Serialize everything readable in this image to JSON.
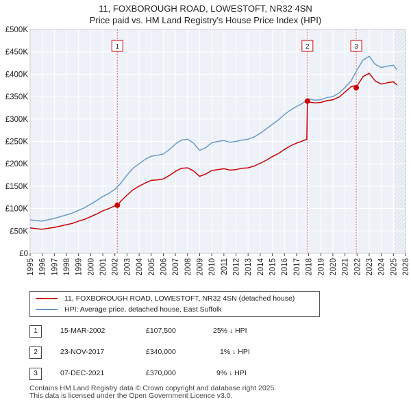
{
  "title_line1": "11, FOXBOROUGH ROAD, LOWESTOFT, NR32 4SN",
  "title_line2": "Price paid vs. HM Land Registry's House Price Index (HPI)",
  "legend": {
    "property": "11, FOXBOROUGH ROAD, LOWESTOFT, NR32 4SN (detached house)",
    "hpi": "HPI: Average price, detached house, East Suffolk"
  },
  "colors": {
    "property": "#cc0000",
    "hpi": "#6699cc",
    "shade": "#e8eef8"
  },
  "sales": [
    {
      "num": "1",
      "date": "15-MAR-2002",
      "price": "£107,500",
      "hpi": "25% ↓ HPI"
    },
    {
      "num": "2",
      "date": "23-NOV-2017",
      "price": "£340,000",
      "hpi": "1% ↓ HPI"
    },
    {
      "num": "3",
      "date": "07-DEC-2021",
      "price": "£370,000",
      "hpi": "9% ↓ HPI"
    }
  ],
  "footer_line1": "Contains HM Land Registry data © Crown copyright and database right 2025.",
  "footer_line2": "This data is licensed under the Open Government Licence v3.0.",
  "chart_data": {
    "type": "line",
    "xlim": [
      1995,
      2026
    ],
    "ylim": [
      0,
      500000
    ],
    "yticks": [
      {
        "value": 0,
        "label": "£0"
      },
      {
        "value": 50000,
        "label": "£50K"
      },
      {
        "value": 100000,
        "label": "£100K"
      },
      {
        "value": 150000,
        "label": "£150K"
      },
      {
        "value": 200000,
        "label": "£200K"
      },
      {
        "value": 250000,
        "label": "£250K"
      },
      {
        "value": 300000,
        "label": "£300K"
      },
      {
        "value": 350000,
        "label": "£350K"
      },
      {
        "value": 400000,
        "label": "£400K"
      },
      {
        "value": 450000,
        "label": "£450K"
      },
      {
        "value": 500000,
        "label": "£500K"
      }
    ],
    "xticks": [
      "1995",
      "1996",
      "1997",
      "1998",
      "1999",
      "2000",
      "2001",
      "2002",
      "2003",
      "2004",
      "2005",
      "2006",
      "2007",
      "2008",
      "2009",
      "2010",
      "2011",
      "2012",
      "2013",
      "2014",
      "2015",
      "2016",
      "2017",
      "2018",
      "2019",
      "2020",
      "2021",
      "2022",
      "2023",
      "2024",
      "2025",
      "2026"
    ],
    "grid": true,
    "forecast_start": 2025.1,
    "sale_markers": [
      {
        "label": "1",
        "x": 2002.2,
        "y": 107500
      },
      {
        "label": "2",
        "x": 2017.9,
        "y": 340000
      },
      {
        "label": "3",
        "x": 2021.93,
        "y": 370000
      }
    ],
    "series": [
      {
        "name": "HPI: Average price, detached house, East Suffolk",
        "x": [
          1995.0,
          1995.5,
          1996.0,
          1996.5,
          1997.0,
          1997.5,
          1998.0,
          1998.5,
          1999.0,
          1999.5,
          2000.0,
          2000.5,
          2001.0,
          2001.5,
          2002.0,
          2002.5,
          2003.0,
          2003.5,
          2004.0,
          2004.5,
          2005.0,
          2005.5,
          2006.0,
          2006.5,
          2007.0,
          2007.5,
          2008.0,
          2008.5,
          2009.0,
          2009.5,
          2010.0,
          2010.5,
          2011.0,
          2011.5,
          2012.0,
          2012.5,
          2013.0,
          2013.5,
          2014.0,
          2014.5,
          2015.0,
          2015.5,
          2016.0,
          2016.5,
          2017.0,
          2017.5,
          2018.0,
          2018.5,
          2019.0,
          2019.5,
          2020.0,
          2020.5,
          2021.0,
          2021.5,
          2022.0,
          2022.5,
          2023.0,
          2023.5,
          2024.0,
          2024.5,
          2025.0,
          2025.3
        ],
        "values": [
          75000,
          73000,
          72000,
          75000,
          78000,
          82000,
          86000,
          90000,
          96000,
          102000,
          110000,
          118000,
          127000,
          134000,
          143000,
          157000,
          175000,
          190000,
          200000,
          210000,
          217000,
          219000,
          222000,
          232000,
          244000,
          253000,
          255000,
          246000,
          230000,
          236000,
          247000,
          250000,
          252000,
          248000,
          250000,
          253000,
          255000,
          260000,
          268000,
          278000,
          288000,
          298000,
          310000,
          320000,
          328000,
          335000,
          345000,
          342000,
          343000,
          348000,
          350000,
          358000,
          370000,
          385000,
          410000,
          432000,
          440000,
          422000,
          415000,
          418000,
          420000,
          410000
        ]
      },
      {
        "name": "11, FOXBOROUGH ROAD, LOWESTOFT, NR32 4SN (detached house)",
        "x": [
          1995.0,
          1995.5,
          1996.0,
          1996.5,
          1997.0,
          1997.5,
          1998.0,
          1998.5,
          1999.0,
          1999.5,
          2000.0,
          2000.5,
          2001.0,
          2001.5,
          2002.0,
          2002.2,
          2002.5,
          2003.0,
          2003.5,
          2004.0,
          2004.5,
          2005.0,
          2005.5,
          2006.0,
          2006.5,
          2007.0,
          2007.5,
          2008.0,
          2008.5,
          2009.0,
          2009.5,
          2010.0,
          2010.5,
          2011.0,
          2011.5,
          2012.0,
          2012.5,
          2013.0,
          2013.5,
          2014.0,
          2014.5,
          2015.0,
          2015.5,
          2016.0,
          2016.5,
          2017.0,
          2017.5,
          2017.85,
          2017.9,
          2018.0,
          2018.5,
          2019.0,
          2019.5,
          2020.0,
          2020.5,
          2021.0,
          2021.5,
          2021.9,
          2021.93,
          2022.0,
          2022.5,
          2023.0,
          2023.5,
          2024.0,
          2024.5,
          2025.0,
          2025.3
        ],
        "values": [
          57000,
          55000,
          54000,
          56000,
          58000,
          61000,
          64000,
          67000,
          72000,
          76000,
          82000,
          88000,
          95000,
          100000,
          106000,
          107500,
          117000,
          130000,
          142000,
          150000,
          157000,
          163000,
          164000,
          166000,
          174000,
          183000,
          190000,
          191000,
          184000,
          172000,
          177000,
          185000,
          187000,
          189000,
          186000,
          187000,
          190000,
          191000,
          195000,
          201000,
          208000,
          216000,
          223000,
          232000,
          240000,
          246000,
          251000,
          255000,
          340000,
          338000,
          336000,
          337000,
          341000,
          343000,
          349000,
          360000,
          372000,
          375000,
          370000,
          374000,
          395000,
          402000,
          385000,
          378000,
          381000,
          383000,
          376000
        ]
      }
    ]
  }
}
